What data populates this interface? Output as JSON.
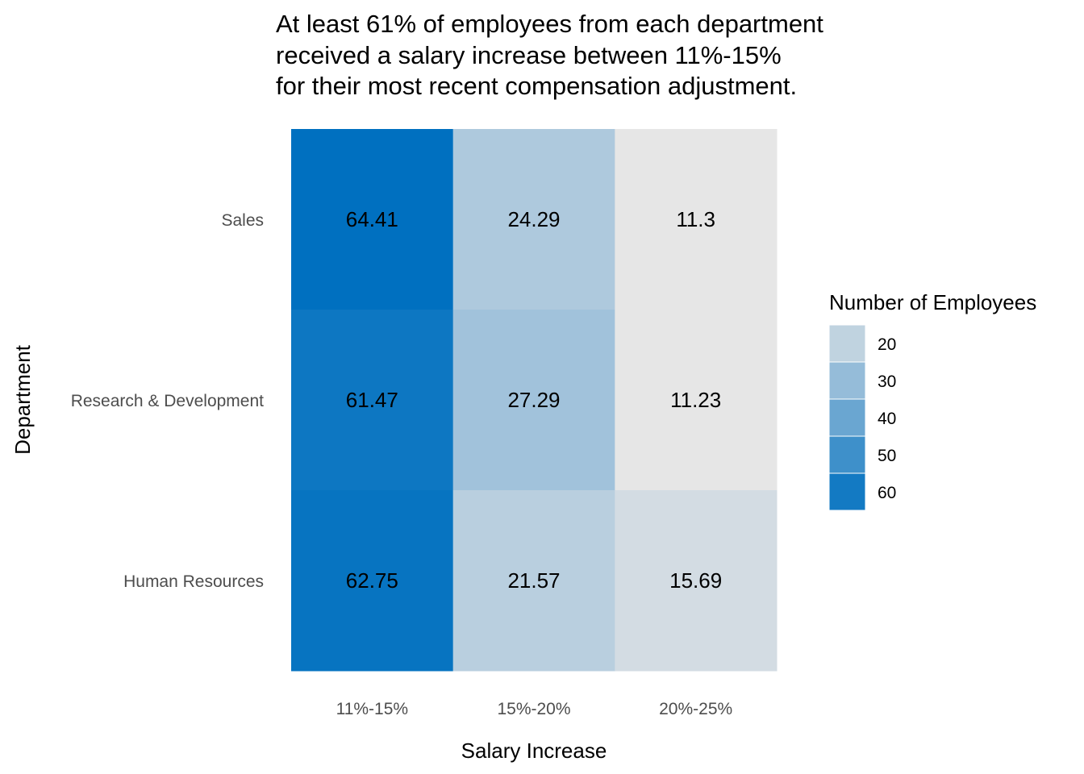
{
  "chart_data": {
    "type": "heatmap",
    "title_lines": [
      "At least 61% of employees from each department",
      "received a salary increase between 11%-15%",
      "for their most recent compensation adjustment."
    ],
    "xlabel": "Salary Increase",
    "ylabel": "Department",
    "x_categories": [
      "11%-15%",
      "15%-20%",
      "20%-25%"
    ],
    "y_categories": [
      "Sales",
      "Research & Development",
      "Human Resources"
    ],
    "values": [
      [
        64.41,
        24.29,
        11.3
      ],
      [
        61.47,
        27.29,
        11.23
      ],
      [
        62.75,
        21.57,
        15.69
      ]
    ],
    "value_labels": [
      [
        "64.41",
        "24.29",
        "11.3"
      ],
      [
        "61.47",
        "27.29",
        "11.23"
      ],
      [
        "62.75",
        "21.57",
        "15.69"
      ]
    ],
    "legend": {
      "title": "Number of Employees",
      "breaks": [
        "20",
        "30",
        "40",
        "50",
        "60"
      ],
      "break_values": [
        20,
        30,
        40,
        50,
        60
      ],
      "placement": "right"
    },
    "color_scale": {
      "low_value": 11.23,
      "low_color": "#e6e6e6",
      "high_value": 64.41,
      "high_color": "#0070c0"
    }
  }
}
